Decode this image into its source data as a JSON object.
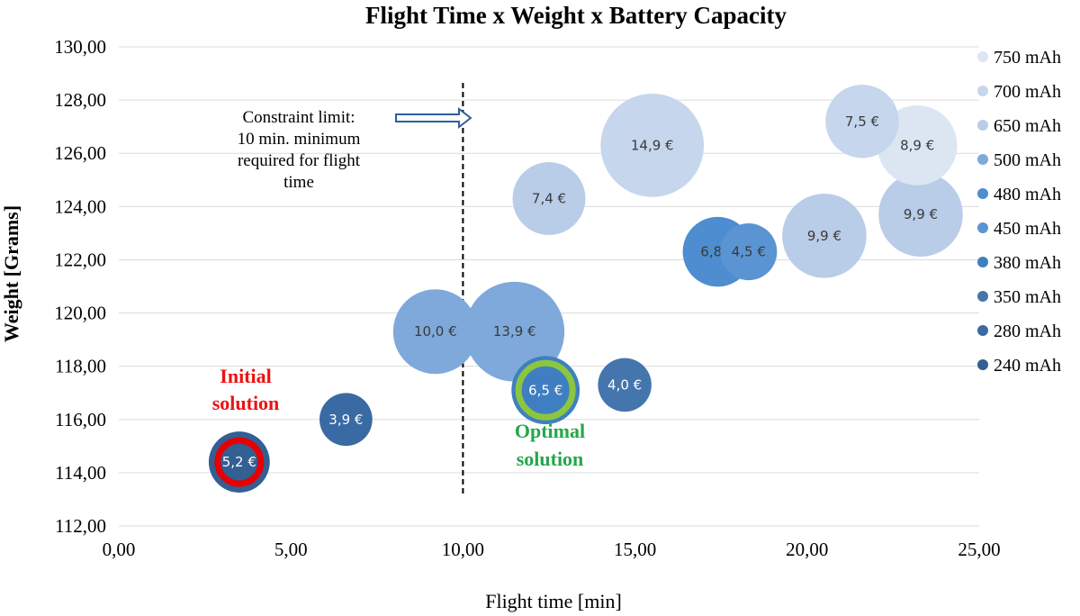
{
  "chart_data": {
    "type": "scatter",
    "title": "Flight Time x Weight x Battery Capacity",
    "xlabel": "Flight time [min]",
    "ylabel": "Weight [Grams]",
    "xlim": [
      0,
      25
    ],
    "ylim": [
      112,
      130
    ],
    "x_ticks": [
      "0,00",
      "5,00",
      "10,00",
      "15,00",
      "20,00",
      "25,00"
    ],
    "y_ticks": [
      "112,00",
      "114,00",
      "116,00",
      "118,00",
      "120,00",
      "122,00",
      "124,00",
      "126,00",
      "128,00",
      "130,00"
    ],
    "grid": true,
    "legend_position": "right",
    "series": [
      {
        "name": "750 mAh",
        "color": "#dce6f2",
        "points": [
          {
            "x": 23.2,
            "y": 126.3,
            "size": 8.9,
            "label": "8,9 €"
          }
        ]
      },
      {
        "name": "700 mAh",
        "color": "#c6d6ec",
        "points": [
          {
            "x": 15.5,
            "y": 126.3,
            "size": 14.9,
            "label": "14,9 €"
          },
          {
            "x": 21.6,
            "y": 127.2,
            "size": 7.5,
            "label": "7,5 €"
          }
        ]
      },
      {
        "name": "650 mAh",
        "color": "#b9cce8",
        "points": [
          {
            "x": 12.5,
            "y": 124.3,
            "size": 7.4,
            "label": "7,4 €"
          },
          {
            "x": 20.5,
            "y": 122.9,
            "size": 9.9,
            "label": "9,9 €"
          },
          {
            "x": 23.3,
            "y": 123.7,
            "size": 9.9,
            "label": "9,9 €"
          }
        ]
      },
      {
        "name": "500 mAh",
        "color": "#7fa9da",
        "points": [
          {
            "x": 9.2,
            "y": 119.3,
            "size": 10.0,
            "label": "10,0 €"
          },
          {
            "x": 11.5,
            "y": 119.3,
            "size": 13.9,
            "label": "13,9 €"
          }
        ]
      },
      {
        "name": "480 mAh",
        "color": "#4d8dd0",
        "points": [
          {
            "x": 17.4,
            "y": 122.3,
            "size": 6.8,
            "label": "6,8 €"
          }
        ]
      },
      {
        "name": "450 mAh",
        "color": "#5b94d2",
        "points": [
          {
            "x": 18.3,
            "y": 122.3,
            "size": 4.5,
            "label": "4,5 €"
          }
        ]
      },
      {
        "name": "380 mAh",
        "color": "#3f7fc1",
        "points": [
          {
            "x": 12.4,
            "y": 117.1,
            "size": 6.5,
            "label": "6,5 €"
          }
        ]
      },
      {
        "name": "350 mAh",
        "color": "#4475ad",
        "points": [
          {
            "x": 14.7,
            "y": 117.3,
            "size": 4.0,
            "label": "4,0 €"
          }
        ]
      },
      {
        "name": "280 mAh",
        "color": "#3a6aa3",
        "points": [
          {
            "x": 6.6,
            "y": 116.0,
            "size": 3.9,
            "label": "3,9 €"
          }
        ]
      },
      {
        "name": "240 mAh",
        "color": "#335f93",
        "points": [
          {
            "x": 3.5,
            "y": 114.4,
            "size": 5.2,
            "label": "5,2 €"
          }
        ]
      }
    ],
    "constraint": {
      "x": 10,
      "text": [
        "Constraint limit:",
        "10 min. minimum",
        "required for flight",
        "time"
      ]
    },
    "annotations": {
      "initial": {
        "text": [
          "Initial",
          "solution"
        ],
        "color": "#ee1111",
        "ring_color": "#e60000"
      },
      "optimal": {
        "text": [
          "Optimal",
          "solution"
        ],
        "color": "#22a84a",
        "ring_color": "#8cc63f"
      }
    }
  }
}
